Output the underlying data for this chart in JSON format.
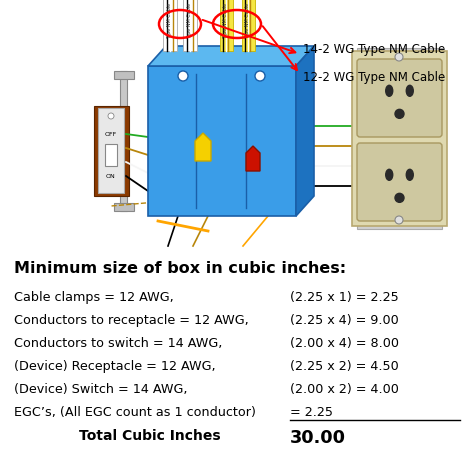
{
  "title": "Minimum size of box in cubic inches:",
  "rows": [
    {
      "label": "Cable clamps = 12 AWG,",
      "formula": "(2.25 x 1) = 2.25",
      "has_underline": false
    },
    {
      "label": "Conductors to receptacle = 12 AWG,",
      "formula": "(2.25 x 4) = 9.00",
      "has_underline": false
    },
    {
      "label": "Conductors to switch = 14 AWG,",
      "formula": "(2.00 x 4) = 8.00",
      "has_underline": false
    },
    {
      "label": "(Device) Receptacle = 12 AWG,",
      "formula": "(2.25 x 2) = 4.50",
      "has_underline": false
    },
    {
      "label": "(Device) Switch = 14 AWG,",
      "formula": "(2.00 x 2) = 4.00",
      "has_underline": false
    },
    {
      "label": "EGC’s, (All EGC count as 1 conductor)",
      "formula": "= 2.25",
      "has_underline": true
    }
  ],
  "total_label": "Total Cubic Inches",
  "total_value": "30.00",
  "label1": "14-2 WG Type NM Cable",
  "label2": "12-2 WG Type NM Cable",
  "bg_color": "#ffffff",
  "title_color": "#000000",
  "text_color": "#000000",
  "label_fontsize": 9.2,
  "title_fontsize": 11.5,
  "diagram_split": 0.495
}
